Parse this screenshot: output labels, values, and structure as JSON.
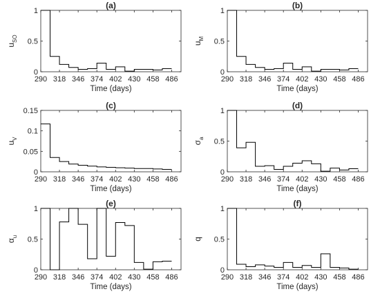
{
  "chart_data": [
    {
      "type": "line",
      "title": "(a)",
      "xlabel": "Time (days)",
      "ylabel": "u",
      "ylabel_sub": "SO",
      "xlim": [
        290,
        500
      ],
      "ylim": [
        0,
        1
      ],
      "xticks": [
        290,
        318,
        346,
        374,
        402,
        430,
        458,
        486
      ],
      "yticks": [
        0,
        0.5,
        1
      ],
      "ytick_labels": [
        "0",
        "0.5",
        "1"
      ],
      "steps": [
        [
          290,
          1.0
        ],
        [
          304,
          0.25
        ],
        [
          318,
          0.12
        ],
        [
          332,
          0.07
        ],
        [
          346,
          0.04
        ],
        [
          360,
          0.05
        ],
        [
          374,
          0.14
        ],
        [
          388,
          0.04
        ],
        [
          402,
          0.08
        ],
        [
          416,
          0.01
        ],
        [
          430,
          0.04
        ],
        [
          444,
          0.04
        ],
        [
          458,
          0.03
        ],
        [
          472,
          0.05
        ]
      ],
      "xend": 486
    },
    {
      "type": "line",
      "title": "(b)",
      "xlabel": "Time (days)",
      "ylabel": "u",
      "ylabel_sub": "M",
      "xlim": [
        290,
        500
      ],
      "ylim": [
        0,
        1
      ],
      "xticks": [
        290,
        318,
        346,
        374,
        402,
        430,
        458,
        486
      ],
      "yticks": [
        0,
        0.5,
        1
      ],
      "ytick_labels": [
        "0",
        "0.5",
        "1"
      ],
      "steps": [
        [
          290,
          1.0
        ],
        [
          304,
          0.25
        ],
        [
          318,
          0.12
        ],
        [
          332,
          0.07
        ],
        [
          346,
          0.04
        ],
        [
          360,
          0.05
        ],
        [
          374,
          0.14
        ],
        [
          388,
          0.04
        ],
        [
          402,
          0.08
        ],
        [
          416,
          0.01
        ],
        [
          430,
          0.04
        ],
        [
          444,
          0.04
        ],
        [
          458,
          0.03
        ],
        [
          472,
          0.05
        ]
      ],
      "xend": 486
    },
    {
      "type": "line",
      "title": "(c)",
      "xlabel": "Time (days)",
      "ylabel": "u",
      "ylabel_sub": "V",
      "xlim": [
        290,
        500
      ],
      "ylim": [
        0,
        0.15
      ],
      "xticks": [
        290,
        318,
        346,
        374,
        402,
        430,
        458,
        486
      ],
      "yticks": [
        0,
        0.05,
        0.1,
        0.15
      ],
      "ytick_labels": [
        "0",
        "0.05",
        "0.1",
        "0.15"
      ],
      "steps": [
        [
          290,
          0.117
        ],
        [
          304,
          0.035
        ],
        [
          318,
          0.025
        ],
        [
          332,
          0.019
        ],
        [
          346,
          0.016
        ],
        [
          360,
          0.014
        ],
        [
          374,
          0.012
        ],
        [
          388,
          0.011
        ],
        [
          402,
          0.01
        ],
        [
          416,
          0.009
        ],
        [
          430,
          0.008
        ],
        [
          444,
          0.008
        ],
        [
          458,
          0.007
        ],
        [
          472,
          0.006
        ]
      ],
      "xend": 486
    },
    {
      "type": "line",
      "title": "(d)",
      "xlabel": "Time (days)",
      "ylabel": "σ",
      "ylabel_sub": "a",
      "xlim": [
        290,
        500
      ],
      "ylim": [
        0,
        1
      ],
      "xticks": [
        290,
        318,
        346,
        374,
        402,
        430,
        458,
        486
      ],
      "yticks": [
        0,
        0.5,
        1
      ],
      "ytick_labels": [
        "0",
        "0.5",
        "1"
      ],
      "steps": [
        [
          290,
          1.0
        ],
        [
          304,
          0.39
        ],
        [
          318,
          0.48
        ],
        [
          332,
          0.09
        ],
        [
          346,
          0.1
        ],
        [
          360,
          0.04
        ],
        [
          374,
          0.09
        ],
        [
          388,
          0.14
        ],
        [
          402,
          0.18
        ],
        [
          416,
          0.13
        ],
        [
          430,
          0.01
        ],
        [
          444,
          0.06
        ],
        [
          458,
          0.03
        ],
        [
          472,
          0.05
        ]
      ],
      "xend": 486
    },
    {
      "type": "line",
      "title": "(e)",
      "xlabel": "Time (days)",
      "ylabel": "α",
      "ylabel_sub": "u",
      "xlim": [
        290,
        500
      ],
      "ylim": [
        0,
        1
      ],
      "xticks": [
        290,
        318,
        346,
        374,
        402,
        430,
        458,
        486
      ],
      "yticks": [
        0,
        0.5,
        1
      ],
      "ytick_labels": [
        "0",
        "0.5",
        "1"
      ],
      "steps": [
        [
          290,
          1.0
        ],
        [
          304,
          0.0
        ],
        [
          318,
          0.78
        ],
        [
          332,
          1.0
        ],
        [
          346,
          0.74
        ],
        [
          360,
          0.18
        ],
        [
          374,
          1.0
        ],
        [
          388,
          0.22
        ],
        [
          402,
          0.77
        ],
        [
          416,
          0.72
        ],
        [
          430,
          0.12
        ],
        [
          444,
          0.01
        ],
        [
          458,
          0.13
        ],
        [
          472,
          0.14
        ]
      ],
      "xend": 486
    },
    {
      "type": "line",
      "title": "(f)",
      "xlabel": "Time (days)",
      "ylabel": "q",
      "ylabel_sub": "",
      "xlim": [
        290,
        500
      ],
      "ylim": [
        0,
        1
      ],
      "xticks": [
        290,
        318,
        346,
        374,
        402,
        430,
        458,
        486
      ],
      "yticks": [
        0,
        0.5,
        1
      ],
      "ytick_labels": [
        "0",
        "0.5",
        "1"
      ],
      "steps": [
        [
          290,
          1.0
        ],
        [
          304,
          0.09
        ],
        [
          318,
          0.05
        ],
        [
          332,
          0.08
        ],
        [
          346,
          0.06
        ],
        [
          360,
          0.04
        ],
        [
          374,
          0.12
        ],
        [
          388,
          0.04
        ],
        [
          402,
          0.07
        ],
        [
          416,
          0.04
        ],
        [
          430,
          0.26
        ],
        [
          444,
          0.04
        ],
        [
          458,
          0.03
        ],
        [
          472,
          0.01
        ]
      ],
      "xend": 486
    }
  ]
}
